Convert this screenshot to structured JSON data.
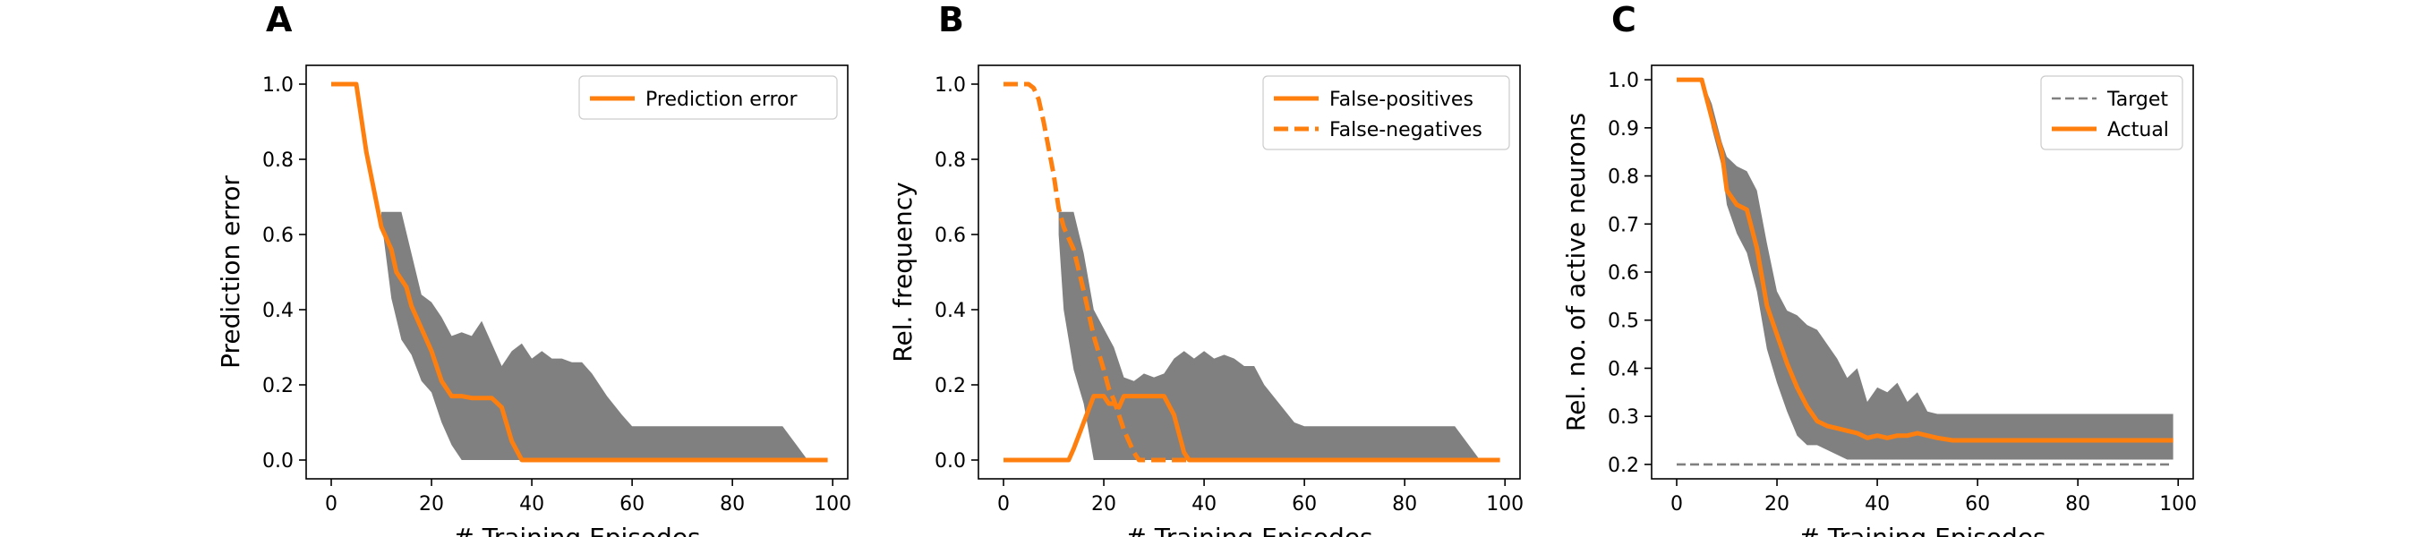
{
  "colors": {
    "actual": "#ff7f0e",
    "band": "#808080",
    "target": "#808080"
  },
  "chart_data": [
    {
      "panel_letter": "A",
      "type": "line",
      "xlabel": "# Training Episodes",
      "ylabel": "Prediction error",
      "xlim": [
        -5,
        103
      ],
      "ylim": [
        -0.05,
        1.05
      ],
      "xticks": [
        0,
        20,
        40,
        60,
        80,
        100
      ],
      "yticks": [
        0.0,
        0.2,
        0.4,
        0.6,
        0.8,
        1.0
      ],
      "ytick_labels": [
        "0.0",
        "0.2",
        "0.4",
        "0.6",
        "0.8",
        "1.0"
      ],
      "legend_position": "top-right",
      "series": [
        {
          "name": "Prediction error",
          "style": "solid",
          "x": [
            0,
            5,
            7,
            10,
            12,
            13,
            15,
            16,
            18,
            20,
            22,
            24,
            26,
            28,
            30,
            32,
            34,
            36,
            38,
            40,
            60,
            80,
            99
          ],
          "y": [
            1.0,
            1.0,
            0.82,
            0.62,
            0.56,
            0.5,
            0.46,
            0.41,
            0.35,
            0.29,
            0.21,
            0.17,
            0.17,
            0.165,
            0.165,
            0.165,
            0.14,
            0.05,
            0.0,
            0.0,
            0.0,
            0.0,
            0.0
          ]
        }
      ],
      "bands": [
        {
          "x": [
            10,
            12,
            14,
            16,
            18,
            20,
            22,
            24,
            26,
            28,
            30,
            32,
            34,
            36,
            38,
            40,
            42,
            44,
            46,
            48,
            50,
            52,
            55,
            58,
            60,
            70,
            80,
            90,
            95,
            99
          ],
          "upper": [
            0.66,
            0.66,
            0.66,
            0.55,
            0.44,
            0.42,
            0.38,
            0.33,
            0.34,
            0.33,
            0.37,
            0.31,
            0.25,
            0.29,
            0.31,
            0.27,
            0.29,
            0.27,
            0.27,
            0.26,
            0.26,
            0.23,
            0.17,
            0.12,
            0.09,
            0.09,
            0.09,
            0.09,
            0.0,
            0.0
          ],
          "lower": [
            0.64,
            0.43,
            0.32,
            0.28,
            0.21,
            0.18,
            0.1,
            0.04,
            0.0,
            0.0,
            0.0,
            0.0,
            0.0,
            0.0,
            0.0,
            0.0,
            0.0,
            0.0,
            0.0,
            0.0,
            0.0,
            0.0,
            0.0,
            0.0,
            0.0,
            0.0,
            0.0,
            0.0,
            0.0,
            0.0
          ]
        }
      ]
    },
    {
      "panel_letter": "B",
      "type": "line",
      "xlabel": "# Training Episodes",
      "ylabel": "Rel. frequency",
      "xlim": [
        -5,
        103
      ],
      "ylim": [
        -0.05,
        1.05
      ],
      "xticks": [
        0,
        20,
        40,
        60,
        80,
        100
      ],
      "yticks": [
        0.0,
        0.2,
        0.4,
        0.6,
        0.8,
        1.0
      ],
      "ytick_labels": [
        "0.0",
        "0.2",
        "0.4",
        "0.6",
        "0.8",
        "1.0"
      ],
      "legend_position": "top-right",
      "series": [
        {
          "name": "False-positives",
          "style": "solid",
          "x": [
            0,
            13,
            14,
            16,
            18,
            20,
            21,
            22,
            23,
            24,
            26,
            28,
            30,
            32,
            34,
            36,
            37,
            40,
            60,
            80,
            99
          ],
          "y": [
            0.0,
            0.0,
            0.03,
            0.1,
            0.17,
            0.17,
            0.15,
            0.15,
            0.14,
            0.17,
            0.17,
            0.17,
            0.17,
            0.17,
            0.12,
            0.02,
            0.0,
            0.0,
            0.0,
            0.0,
            0.0
          ]
        },
        {
          "name": "False-negatives",
          "style": "dashed",
          "x": [
            0,
            5,
            6,
            7,
            8,
            10,
            11,
            12,
            14,
            16,
            18,
            20,
            21,
            22,
            24,
            26,
            27,
            99
          ],
          "y": [
            1.0,
            1.0,
            0.99,
            0.96,
            0.9,
            0.76,
            0.67,
            0.62,
            0.56,
            0.45,
            0.33,
            0.24,
            0.19,
            0.16,
            0.08,
            0.02,
            0.0,
            0.0
          ]
        }
      ],
      "bands": [
        {
          "x": [
            11,
            12,
            14,
            16,
            18,
            20,
            22,
            24,
            26,
            28,
            30,
            32,
            34,
            36,
            38,
            40,
            42,
            44,
            46,
            48,
            50,
            52,
            55,
            58,
            60,
            70,
            80,
            90,
            95,
            99
          ],
          "upper": [
            0.66,
            0.66,
            0.66,
            0.55,
            0.4,
            0.35,
            0.3,
            0.22,
            0.21,
            0.23,
            0.22,
            0.23,
            0.27,
            0.29,
            0.27,
            0.29,
            0.27,
            0.28,
            0.27,
            0.25,
            0.25,
            0.2,
            0.15,
            0.1,
            0.09,
            0.09,
            0.09,
            0.09,
            0.0,
            0.0
          ],
          "lower": [
            0.6,
            0.4,
            0.24,
            0.15,
            0.0,
            0.0,
            0.0,
            0.0,
            0.0,
            0.0,
            0.0,
            0.0,
            0.0,
            0.0,
            0.0,
            0.0,
            0.0,
            0.0,
            0.0,
            0.0,
            0.0,
            0.0,
            0.0,
            0.0,
            0.0,
            0.0,
            0.0,
            0.0,
            0.0,
            0.0
          ]
        }
      ]
    },
    {
      "panel_letter": "C",
      "type": "line",
      "xlabel": "# Training Episodes",
      "ylabel": "Rel. no. of active neurons",
      "xlim": [
        -5,
        103
      ],
      "ylim": [
        0.17,
        1.03
      ],
      "xticks": [
        0,
        20,
        40,
        60,
        80,
        100
      ],
      "yticks": [
        0.2,
        0.3,
        0.4,
        0.5,
        0.6,
        0.7,
        0.8,
        0.9,
        1.0
      ],
      "ytick_labels": [
        "0.2",
        "0.3",
        "0.4",
        "0.5",
        "0.6",
        "0.7",
        "0.8",
        "0.9",
        "1.0"
      ],
      "legend_position": "top-right",
      "series": [
        {
          "name": "Target",
          "style": "dashed-thin",
          "x": [
            0,
            99
          ],
          "y": [
            0.2,
            0.2
          ]
        },
        {
          "name": "Actual",
          "style": "solid",
          "x": [
            0,
            5,
            7,
            9,
            10,
            12,
            14,
            16,
            18,
            20,
            22,
            24,
            26,
            28,
            30,
            32,
            34,
            36,
            38,
            40,
            42,
            44,
            46,
            48,
            50,
            52,
            55,
            99
          ],
          "y": [
            1.0,
            1.0,
            0.92,
            0.85,
            0.77,
            0.74,
            0.73,
            0.65,
            0.53,
            0.47,
            0.41,
            0.36,
            0.32,
            0.29,
            0.28,
            0.275,
            0.27,
            0.265,
            0.255,
            0.26,
            0.255,
            0.26,
            0.26,
            0.265,
            0.26,
            0.255,
            0.25,
            0.25
          ]
        }
      ],
      "bands": [
        {
          "x": [
            5,
            7,
            9,
            10,
            12,
            14,
            16,
            18,
            20,
            22,
            24,
            26,
            28,
            30,
            32,
            34,
            36,
            38,
            40,
            42,
            44,
            46,
            48,
            50,
            52,
            55,
            99
          ],
          "upper": [
            1.0,
            0.95,
            0.87,
            0.84,
            0.82,
            0.81,
            0.77,
            0.66,
            0.56,
            0.52,
            0.51,
            0.49,
            0.48,
            0.45,
            0.42,
            0.38,
            0.4,
            0.33,
            0.36,
            0.35,
            0.37,
            0.33,
            0.35,
            0.31,
            0.305,
            0.305,
            0.305
          ],
          "lower": [
            1.0,
            0.9,
            0.82,
            0.74,
            0.68,
            0.64,
            0.56,
            0.44,
            0.37,
            0.31,
            0.26,
            0.24,
            0.24,
            0.23,
            0.22,
            0.21,
            0.21,
            0.21,
            0.21,
            0.21,
            0.21,
            0.21,
            0.21,
            0.21,
            0.21,
            0.21,
            0.21
          ]
        }
      ]
    }
  ]
}
